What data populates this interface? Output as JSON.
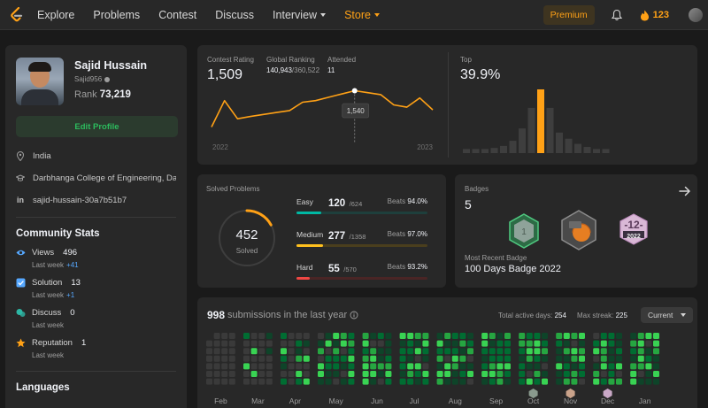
{
  "nav": {
    "items": [
      {
        "label": "Explore",
        "name": "nav-explore"
      },
      {
        "label": "Problems",
        "name": "nav-problems"
      },
      {
        "label": "Contest",
        "name": "nav-contest"
      },
      {
        "label": "Discuss",
        "name": "nav-discuss"
      }
    ],
    "interview": "Interview",
    "store": "Store",
    "premium": "Premium",
    "streak": "123"
  },
  "profile": {
    "name": "Sajid Hussain",
    "username": "Sajid956",
    "rank_label": "Rank",
    "rank": "73,219",
    "edit": "Edit Profile",
    "location": "India",
    "school": "Darbhanga College of Engineering, Da...",
    "linkedin": "sajid-hussain-30a7b51b7"
  },
  "community": {
    "title": "Community Stats",
    "stats": [
      {
        "label": "Views",
        "value": "496",
        "last_week": "Last week",
        "delta": "+41",
        "icon": "eye-icon",
        "color": "#56a8ff"
      },
      {
        "label": "Solution",
        "value": "13",
        "last_week": "Last week",
        "delta": "+1",
        "icon": "check-square-icon",
        "color": "#56a8ff"
      },
      {
        "label": "Discuss",
        "value": "0",
        "last_week": "Last week",
        "delta": "",
        "icon": "chat-bubbles-icon",
        "color": "#2db7a5"
      },
      {
        "label": "Reputation",
        "value": "1",
        "last_week": "Last week",
        "delta": "",
        "icon": "star-icon",
        "color": "#ffa116"
      }
    ]
  },
  "languages": {
    "title": "Languages"
  },
  "contest": {
    "rating_label": "Contest Rating",
    "rating": "1,509",
    "global_label": "Global Ranking",
    "global_rank": "140,943",
    "global_total": "/360,522",
    "attended_label": "Attended",
    "attended": "11",
    "tooltip": "1,540",
    "year_start": "2022",
    "year_end": "2023",
    "top_label": "Top",
    "top_value": "39.9%",
    "rating_history": [
      1430,
      1510,
      1455,
      1462,
      1468,
      1474,
      1480,
      1505,
      1510,
      1520,
      1530,
      1540,
      1534,
      1528,
      1497,
      1490,
      1518,
      1482
    ],
    "histogram": [
      4,
      4,
      4,
      5,
      7,
      12,
      24,
      44,
      62,
      44,
      20,
      14,
      9,
      6,
      4,
      4
    ],
    "histogram_highlight": 8
  },
  "solved": {
    "title": "Solved Problems",
    "total": "452",
    "total_label": "Solved",
    "total_fraction": 0.17,
    "items": [
      {
        "label": "Easy",
        "solved": "120",
        "total": "/624",
        "beats_label": "Beats",
        "beats": "94.0%",
        "ratio": 0.19,
        "color": "#00b8a3",
        "track": "#1e3f3c"
      },
      {
        "label": "Medium",
        "solved": "277",
        "total": "/1358",
        "beats_label": "Beats",
        "beats": "97.0%",
        "ratio": 0.2,
        "color": "#ffc01e",
        "track": "#4a3e1d"
      },
      {
        "label": "Hard",
        "solved": "55",
        "total": "/570",
        "beats_label": "Beats",
        "beats": "93.2%",
        "ratio": 0.1,
        "color": "#ef4743",
        "track": "#4a2525"
      }
    ]
  },
  "badges": {
    "title": "Badges",
    "count": "5",
    "recent_label": "Most Recent Badge",
    "recent": "100 Days Badge 2022",
    "badge_number": "12",
    "badge_year": "2022"
  },
  "submissions": {
    "count": "998",
    "label": "submissions in the last year",
    "active_label": "Total active days:",
    "active": "254",
    "streak_label": "Max streak:",
    "streak": "225",
    "select": "Current",
    "months": [
      "Feb",
      "Mar",
      "Apr",
      "May",
      "Jun",
      "Jul",
      "Aug",
      "Sep",
      "Oct",
      "Nov",
      "Dec",
      "Jan"
    ],
    "month_weeks": [
      4,
      4,
      4,
      5,
      4,
      4,
      5,
      4,
      4,
      4,
      4,
      4
    ]
  }
}
